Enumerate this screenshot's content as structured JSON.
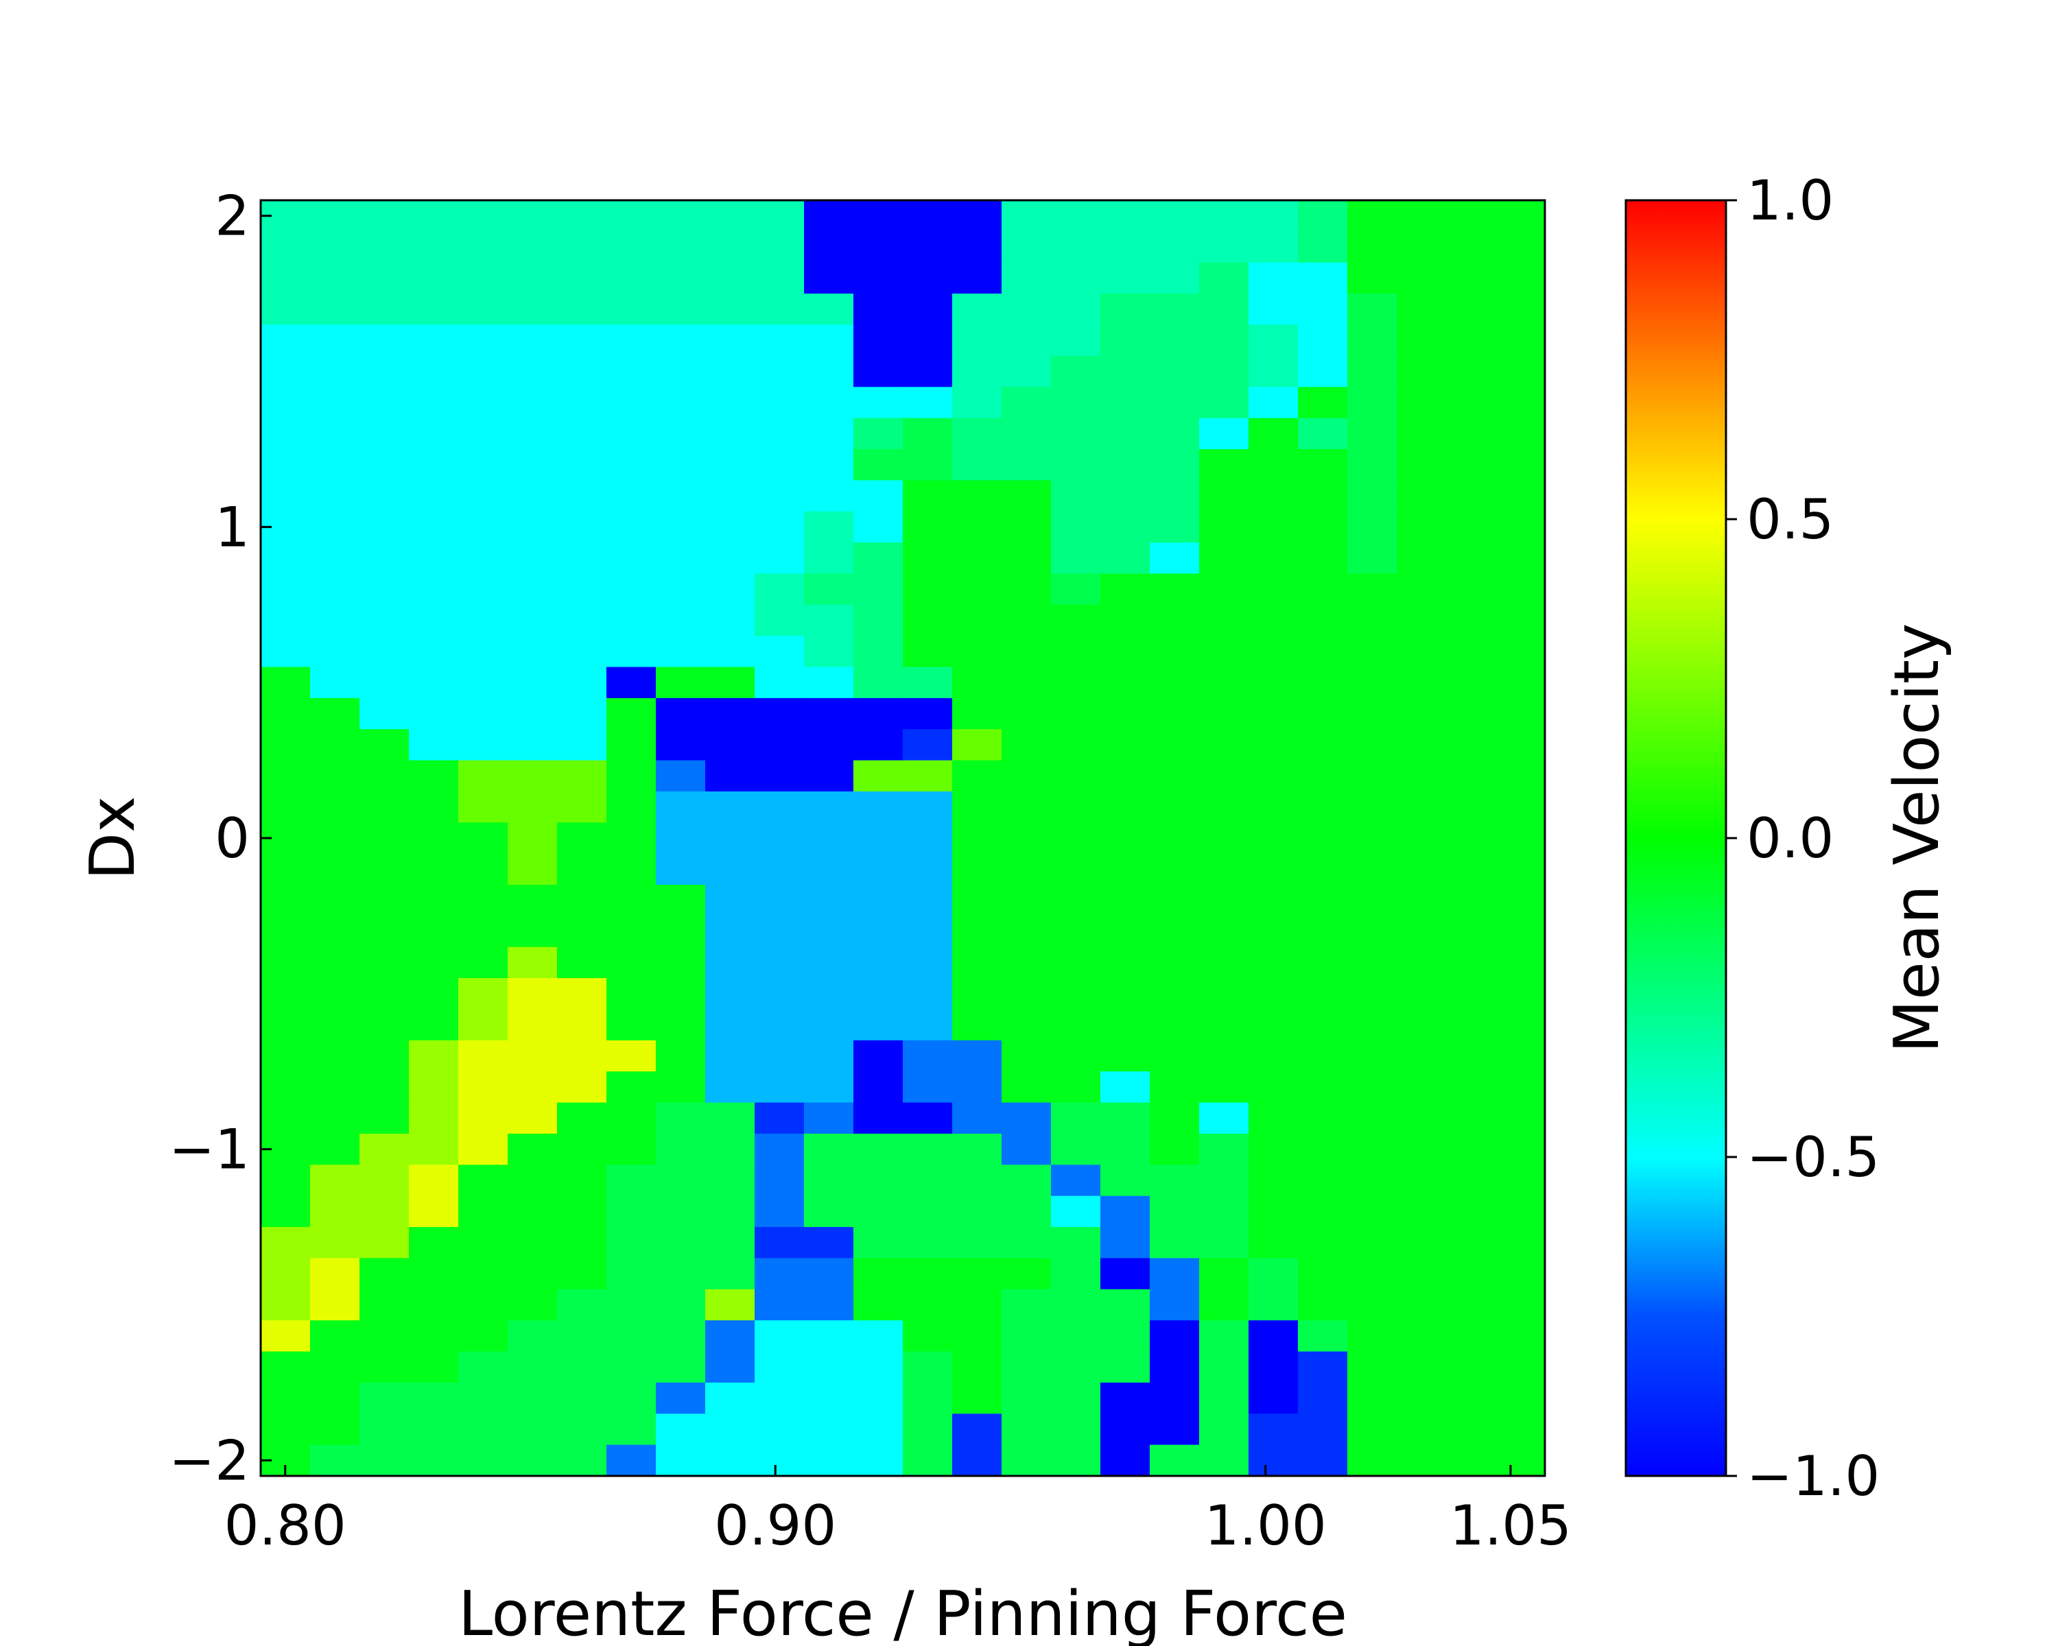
{
  "chart_data": {
    "type": "heatmap",
    "title": "",
    "xlabel": "Lorentz Force / Pinning Force",
    "ylabel": "Dx",
    "colorbar_label": "Mean Velocity",
    "colormap": "jet-like (blue → cyan → green → yellow → red)",
    "color_range": [
      -1.0,
      1.0
    ],
    "x_range": [
      0.795,
      1.057
    ],
    "y_range": [
      -2.05,
      2.05
    ],
    "x_ticks": [
      0.8,
      0.9,
      1.0,
      1.05
    ],
    "x_tick_labels": [
      "0.80",
      "0.90",
      "1.00",
      "1.05"
    ],
    "y_ticks": [
      2,
      1,
      0,
      -1,
      -2
    ],
    "y_tick_labels": [
      "2",
      "1",
      "0",
      "−1",
      "−2"
    ],
    "colorbar_ticks": [
      1.0,
      0.5,
      0.0,
      -0.5,
      -1.0
    ],
    "colorbar_tick_labels": [
      "1.0",
      "0.5",
      "0.0",
      "−0.5",
      "−1.0"
    ],
    "n_cols": 26,
    "n_rows": 41,
    "rows_top_to_bottom": [
      "B,B,B,B,B,B,B,B,B,B,B,N,N,N,N,B,B,B,B,B,B,C,G,G,G,G",
      "B,B,B,B,B,B,B,B,B,B,B,N,N,N,N,B,B,B,B,B,B,C,G,G,G,G",
      "B,B,B,B,B,B,B,B,B,B,B,N,N,N,N,B,B,B,B,C,T,T,G,G,G,G",
      "B,B,B,B,B,B,B,B,B,B,B,B,N,N,B,B,B,C,C,C,T,T,E,G,G,G",
      "T,T,T,T,T,T,T,T,T,T,T,T,N,N,B,B,B,C,C,C,B,T,E,G,G,G",
      "T,T,T,T,T,T,T,T,T,T,T,T,N,N,B,B,C,C,C,C,B,T,E,G,G,G",
      "T,T,T,T,T,T,T,T,T,T,T,T,T,T,B,C,C,C,C,C,T,G,E,G,G,G",
      "T,T,T,T,T,T,T,T,T,T,T,T,C,E,C,C,C,C,C,T,G,C,E,G,G,G",
      "T,T,T,T,T,T,T,T,T,T,T,T,E,E,C,C,C,C,C,G,G,G,E,G,G,G",
      "T,T,T,T,T,T,T,T,T,T,T,T,T,G,G,G,C,C,C,G,G,G,E,G,G,G",
      "T,T,T,T,T,T,T,T,T,T,T,B,T,G,G,G,C,C,C,G,G,G,E,G,G,G",
      "T,T,T,T,T,T,T,T,T,T,T,B,C,G,G,G,C,C,T,G,G,G,E,G,G,G",
      "T,T,T,T,T,T,T,T,T,T,B,C,C,G,G,G,E,G,G,G,G,G,G,G,G,G",
      "T,T,T,T,T,T,T,T,T,T,B,B,C,G,G,G,G,G,G,G,G,G,G,G,G,G",
      "T,T,T,T,T,T,T,T,T,T,T,B,C,G,G,G,G,G,G,G,G,G,G,G,G,G",
      "G,T,T,T,T,T,T,N,G,G,T,T,C,C,G,G,G,G,G,G,G,G,G,G,G,G",
      "G,G,T,T,T,T,T,G,N,N,N,N,N,N,G,G,G,G,G,G,G,G,G,G,G,G",
      "G,G,G,T,T,T,T,G,N,N,N,N,N,M,Q,G,G,G,G,G,G,G,G,G,G,G",
      "G,G,G,G,Q,Q,Q,G,K,N,N,N,Q,Q,G,G,G,G,G,G,G,G,G,G,G,G",
      "G,G,G,G,Q,Q,Q,G,S,S,S,S,S,S,G,G,G,G,G,G,G,G,G,G,G,G",
      "G,G,G,G,G,Q,G,G,S,S,S,S,S,S,G,G,G,G,G,G,G,G,G,G,G,G",
      "G,G,G,G,G,Q,G,G,S,S,S,S,S,S,G,G,G,G,G,G,G,G,G,G,G,G",
      "G,G,G,G,G,G,G,G,G,S,S,S,S,S,G,G,G,G,G,G,G,G,G,G,G,G",
      "G,G,G,G,G,G,G,G,G,S,S,S,S,S,G,G,G,G,G,G,G,G,G,G,G,G",
      "G,G,G,G,G,L,G,G,G,S,S,S,S,S,G,G,G,G,G,G,G,G,G,G,G,G",
      "G,G,G,G,L,Y,Y,G,G,S,S,S,S,S,G,G,G,G,G,G,G,G,G,G,G,G",
      "G,G,G,G,L,Y,Y,G,G,S,S,S,S,S,G,G,G,G,G,G,G,G,G,G,G,G",
      "G,G,G,L,Y,Y,Y,Y,G,S,S,S,N,K,K,G,G,G,G,G,G,G,G,G,G,G",
      "G,G,G,L,Y,Y,Y,G,G,S,S,S,N,K,K,G,G,T,G,G,G,G,G,G,G,G",
      "G,G,G,L,Y,Y,G,G,E,E,M,K,N,N,K,K,E,E,G,T,G,G,G,G,G,G",
      "G,G,L,L,Y,G,G,G,E,E,K,E,E,E,E,K,E,E,G,E,G,G,G,G,G,G",
      "G,L,L,Y,G,G,G,E,E,E,K,E,E,E,E,E,K,E,E,E,G,G,G,G,G,G",
      "G,L,L,Y,G,G,G,E,E,E,K,E,E,E,E,E,T,K,E,E,G,G,G,G,G,G",
      "L,L,L,G,G,G,G,E,E,E,M,M,E,E,E,E,E,K,E,E,G,G,G,G,G,G",
      "L,Y,G,G,G,G,G,E,E,E,K,K,G,G,G,G,E,N,K,G,E,G,G,G,G,G",
      "L,Y,G,G,G,G,E,E,E,L,K,K,G,G,G,E,E,E,K,G,E,G,G,G,G,G",
      "Y,G,G,G,G,E,E,E,E,K,T,T,T,G,G,E,E,E,N,E,N,E,G,G,G,G",
      "G,G,G,G,E,E,E,E,E,K,T,T,T,E,G,E,E,E,N,E,N,M,G,G,G,G",
      "G,G,E,E,E,E,E,E,K,T,T,T,T,E,G,E,E,N,N,E,N,M,G,G,G,G",
      "G,G,E,E,E,E,E,E,T,T,T,T,T,E,M,E,E,N,N,E,M,M,G,G,G,G",
      "G,E,E,E,E,E,E,K,T,T,T,T,T,E,M,E,E,N,E,E,M,M,G,G,G,G"
    ],
    "value_codes": {
      "N": -1.0,
      "M": -0.85,
      "K": -0.7,
      "S": -0.6,
      "T": -0.5,
      "B": -0.35,
      "C": -0.25,
      "E": -0.15,
      "G": -0.05,
      "Q": 0.2,
      "L": 0.3,
      "Y": 0.45
    }
  }
}
